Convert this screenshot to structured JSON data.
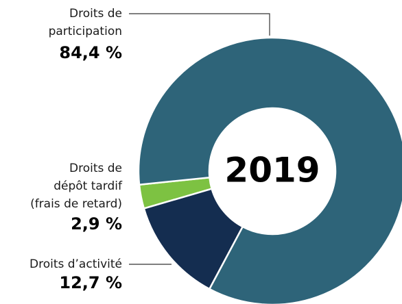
{
  "chart_data": {
    "type": "donut",
    "center_label": "2019",
    "categories": [
      [
        "Droits de",
        "participation"
      ],
      [
        "Droits d’activité"
      ],
      [
        "Droits de",
        "dépôt tardif",
        "(frais de retard)"
      ]
    ],
    "values": [
      84.4,
      12.7,
      2.9
    ],
    "value_labels": [
      "84,4 %",
      "12,7 %",
      "2,9 %"
    ],
    "colors": [
      "#2e6479",
      "#142d50",
      "#7dc242"
    ]
  }
}
